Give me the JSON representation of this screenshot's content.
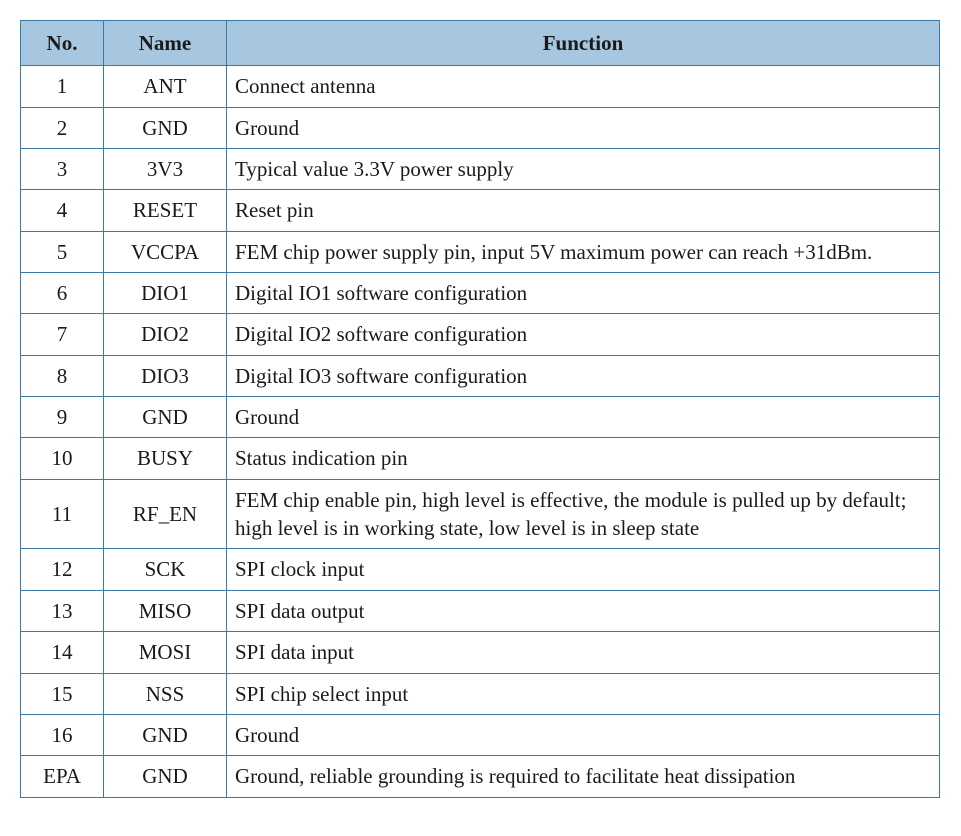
{
  "table": {
    "header_bg": "#a7c7e0",
    "border_color": "#3c7aa5",
    "columns": [
      "No.",
      "Name",
      "Function"
    ],
    "rows": [
      {
        "no": "1",
        "name": "ANT",
        "func": "Connect antenna"
      },
      {
        "no": "2",
        "name": "GND",
        "func": "Ground"
      },
      {
        "no": "3",
        "name": "3V3",
        "func": "Typical value 3.3V power supply"
      },
      {
        "no": "4",
        "name": "RESET",
        "func": "Reset pin"
      },
      {
        "no": "5",
        "name": "VCCPA",
        "func": "FEM chip power supply pin, input 5V maximum power can reach +31dBm."
      },
      {
        "no": "6",
        "name": "DIO1",
        "func": "Digital IO1 software configuration"
      },
      {
        "no": "7",
        "name": "DIO2",
        "func": "Digital IO2 software configuration"
      },
      {
        "no": "8",
        "name": "DIO3",
        "func": "Digital IO3 software configuration"
      },
      {
        "no": "9",
        "name": "GND",
        "func": "Ground"
      },
      {
        "no": "10",
        "name": "BUSY",
        "func": "Status indication pin"
      },
      {
        "no": "11",
        "name": "RF_EN",
        "func": "FEM chip enable pin, high level is effective, the module is pulled up by default; high level is in working state, low level is in sleep state"
      },
      {
        "no": "12",
        "name": "SCK",
        "func": "SPI clock input"
      },
      {
        "no": "13",
        "name": "MISO",
        "func": "SPI data output"
      },
      {
        "no": "14",
        "name": "MOSI",
        "func": "SPI data input"
      },
      {
        "no": "15",
        "name": "NSS",
        "func": "SPI chip select input"
      },
      {
        "no": "16",
        "name": "GND",
        "func": "Ground"
      },
      {
        "no": "EPA",
        "name": "GND",
        "func": "Ground, reliable grounding is required to facilitate heat dissipation"
      }
    ]
  }
}
